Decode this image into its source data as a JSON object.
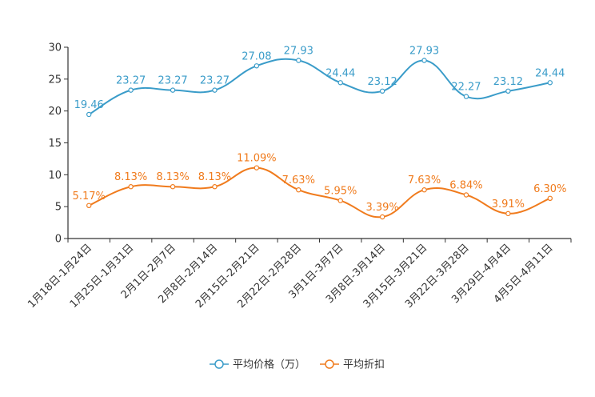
{
  "chart_data": {
    "type": "line",
    "title": "",
    "xlabel": "",
    "ylabel": "",
    "ylim": [
      0,
      30
    ],
    "yticks": [
      0,
      5,
      10,
      15,
      20,
      25,
      30
    ],
    "grid": false,
    "legend_position": "bottom-center",
    "smooth": true,
    "categories": [
      "1月18日-1月24日",
      "1月25日-1月31日",
      "2月1日-2月7日",
      "2月8日-2月14日",
      "2月15日-2月21日",
      "2月22日-2月28日",
      "3月1日-3月7日",
      "3月8日-3月14日",
      "3月15日-3月21日",
      "3月22日-3月28日",
      "3月29日-4月4日",
      "4月5日-4月11日"
    ],
    "series": [
      {
        "name": "平均价格（万）",
        "color": "#3a9cc9",
        "values": [
          19.46,
          23.27,
          23.27,
          23.27,
          27.08,
          27.93,
          24.44,
          23.12,
          27.93,
          22.27,
          23.12,
          24.44
        ],
        "labels": [
          "19.46",
          "23.27",
          "23.27",
          "23.27",
          "27.08",
          "27.93",
          "24.44",
          "23.12",
          "27.93",
          "22.27",
          "23.12",
          "24.44"
        ]
      },
      {
        "name": "平均折扣",
        "color": "#f07b1d",
        "values": [
          5.17,
          8.13,
          8.13,
          8.13,
          11.09,
          7.63,
          5.95,
          3.39,
          7.63,
          6.84,
          3.91,
          6.3
        ],
        "labels": [
          "5.17%",
          "8.13%",
          "8.13%",
          "8.13%",
          "11.09%",
          "7.63%",
          "5.95%",
          "3.39%",
          "7.63%",
          "6.84%",
          "3.91%",
          "6.30%"
        ]
      }
    ]
  }
}
